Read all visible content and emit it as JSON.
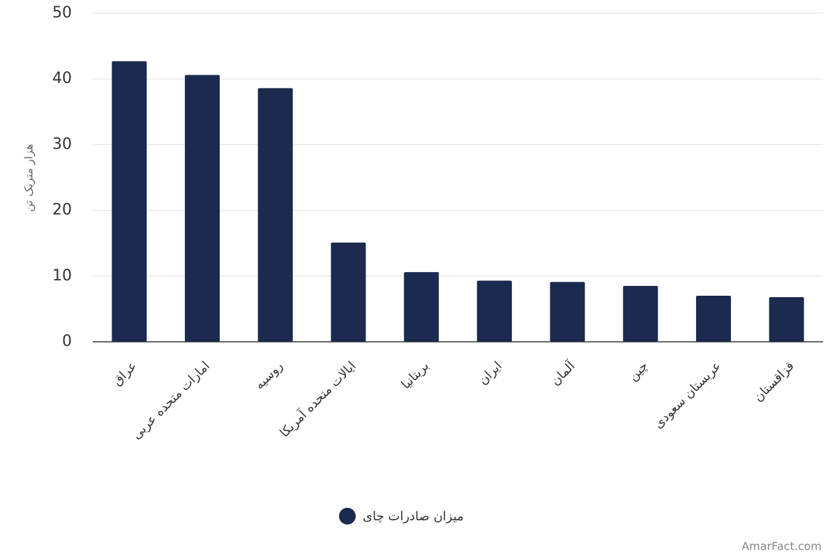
{
  "chart_data": {
    "type": "bar",
    "y_label": "هزار متریک تن",
    "categories": [
      "عراق",
      "امارات متحده عربی",
      "روسیه",
      "ایالات متحده آمریکا",
      "بریتانیا",
      "ایران",
      "آلمان",
      "چین",
      "عربستان سعودی",
      "قزاقستان"
    ],
    "series": [
      {
        "name": "میزان صادرات چای",
        "color": "#1b2a4e",
        "values": [
          42.7,
          40.6,
          38.6,
          15.1,
          10.6,
          9.3,
          9.1,
          8.5,
          7.0,
          6.8
        ]
      }
    ],
    "ylim": [
      0,
      50
    ],
    "yticks": [
      0,
      10,
      20,
      30,
      40,
      50
    ],
    "grid": true,
    "watermark": "AmarFact.com"
  }
}
